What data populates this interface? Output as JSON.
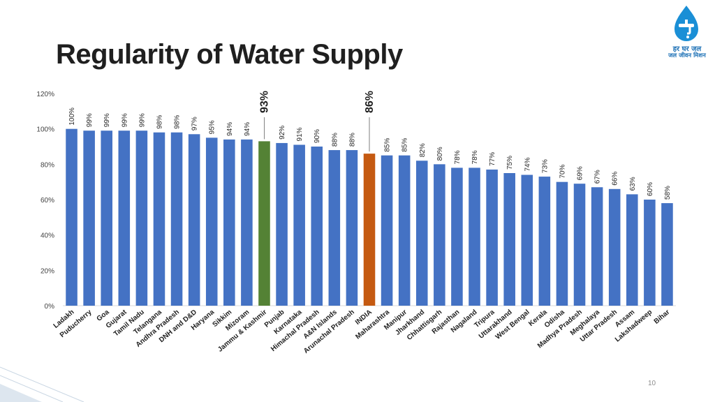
{
  "slide": {
    "title": "Regularity of Water Supply",
    "page_number": "10"
  },
  "logo": {
    "icon": "water-tap-drop-icon",
    "line1": "हर घर जल",
    "line2": "जल जीवन मिशन",
    "color": "#1a6fb5"
  },
  "chart_data": {
    "type": "bar",
    "title": "",
    "xlabel": "",
    "ylabel": "",
    "ylim": [
      0,
      120
    ],
    "yticks": [
      0,
      20,
      40,
      60,
      80,
      100,
      120
    ],
    "ytick_labels": [
      "0%",
      "20%",
      "40%",
      "60%",
      "80%",
      "100%",
      "120%"
    ],
    "grid": false,
    "categories": [
      "Ladakh",
      "Puducherry",
      "Goa",
      "Gujarat",
      "Tamil Nadu",
      "Telangana",
      "Andhra Pradesh",
      "DNH and D&D",
      "Haryana",
      "Sikkim",
      "Mizoram",
      "Jammu & Kashmir",
      "Punjab",
      "Karnataka",
      "Himachal Pradesh",
      "A&N Islands",
      "Arunachal Pradesh",
      "INDIA",
      "Maharashtra",
      "Manipur",
      "Jharkhand",
      "Chhattisgarh",
      "Rajasthan",
      "Nagaland",
      "Tripura",
      "Uttarakhand",
      "West Bengal",
      "Kerala",
      "Odisha",
      "Madhya Pradesh",
      "Meghalaya",
      "Uttar Pradesh",
      "Assam",
      "Lakshadweep",
      "Bihar"
    ],
    "values": [
      100,
      99,
      99,
      99,
      99,
      98,
      98,
      97,
      95,
      94,
      94,
      93,
      92,
      91,
      90,
      88,
      88,
      86,
      85,
      85,
      82,
      80,
      78,
      78,
      77,
      75,
      74,
      73,
      70,
      69,
      67,
      66,
      63,
      60,
      58
    ],
    "value_labels": [
      "100%",
      "99%",
      "99%",
      "99%",
      "99%",
      "98%",
      "98%",
      "97%",
      "95%",
      "94%",
      "94%",
      "93%",
      "92%",
      "91%",
      "90%",
      "88%",
      "88%",
      "86%",
      "85%",
      "85%",
      "82%",
      "80%",
      "78%",
      "78%",
      "77%",
      "75%",
      "74%",
      "73%",
      "70%",
      "69%",
      "67%",
      "66%",
      "63%",
      "60%",
      "58%"
    ],
    "colors": {
      "default": "#4472c4",
      "Jammu & Kashmir": "#548235",
      "INDIA": "#c55a11"
    },
    "highlighted_labels": {
      "Jammu & Kashmir": "93%",
      "INDIA": "86%"
    }
  }
}
